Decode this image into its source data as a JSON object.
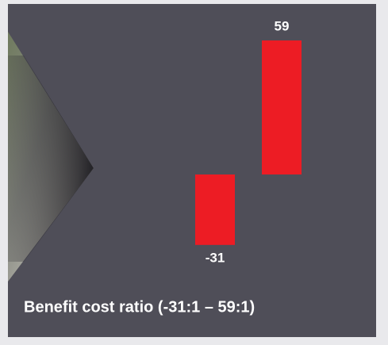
{
  "chart_data": {
    "type": "bar",
    "title": "Benefit cost ratio (-31:1 – 59:1)",
    "categories": [
      null,
      null
    ],
    "values": [
      -31,
      59
    ],
    "color": "#ed1c24"
  }
}
